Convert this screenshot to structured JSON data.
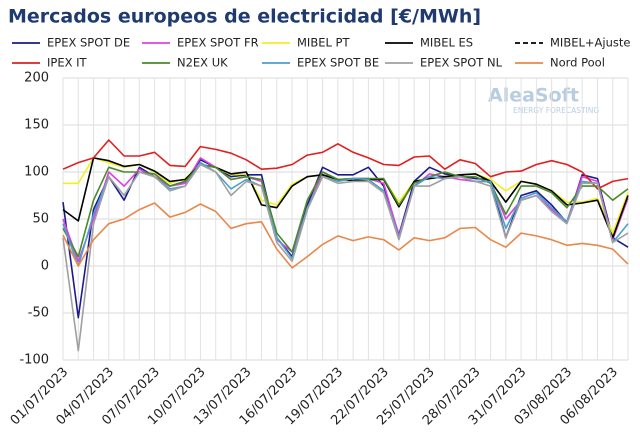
{
  "chart_data": {
    "type": "line",
    "title": "Mercados europeos de electricidad [€/MWh]",
    "watermark": "AleaSoft",
    "watermark_sub": "ENERGY FORECASTING",
    "categories": [
      "01/07/2023",
      null,
      null,
      "04/07/2023",
      null,
      null,
      "07/07/2023",
      null,
      null,
      "10/07/2023",
      null,
      null,
      "13/07/2023",
      null,
      null,
      "16/07/2023",
      null,
      null,
      "19/07/2023",
      null,
      null,
      "22/07/2023",
      null,
      null,
      "25/07/2023",
      null,
      null,
      "28/07/2023",
      null,
      null,
      "31/07/2023",
      null,
      null,
      "03/08/2023",
      null,
      null,
      "06/08/2023",
      null
    ],
    "ylim": [
      -100,
      200
    ],
    "yticks": [
      -100,
      -50,
      0,
      50,
      100,
      150,
      200
    ],
    "grid": true,
    "series": [
      {
        "name": "EPEX SPOT DE",
        "color": "#1a1a8c",
        "values": [
          68,
          -55,
          60,
          95,
          70,
          105,
          95,
          85,
          90,
          113,
          105,
          95,
          97,
          97,
          30,
          10,
          65,
          105,
          97,
          97,
          105,
          85,
          33,
          90,
          105,
          98,
          96,
          93,
          92,
          30,
          75,
          80,
          65,
          46,
          97,
          93,
          30,
          20
        ]
      },
      {
        "name": "EPEX SPOT FR",
        "color": "#e040e0",
        "values": [
          50,
          5,
          50,
          100,
          85,
          103,
          95,
          85,
          88,
          115,
          105,
          92,
          95,
          90,
          28,
          15,
          60,
          100,
          92,
          93,
          93,
          88,
          32,
          85,
          98,
          95,
          92,
          90,
          90,
          50,
          70,
          75,
          60,
          47,
          95,
          90,
          28,
          72
        ]
      },
      {
        "name": "MIBEL PT",
        "color": "#f0f020",
        "values": [
          88,
          88,
          115,
          110,
          105,
          108,
          100,
          88,
          93,
          108,
          105,
          97,
          98,
          70,
          65,
          87,
          95,
          97,
          92,
          91,
          92,
          92,
          68,
          90,
          93,
          95,
          97,
          98,
          92,
          80,
          90,
          87,
          80,
          68,
          68,
          72,
          35,
          78
        ]
      },
      {
        "name": "MIBEL ES",
        "color": "#000000",
        "values": [
          60,
          48,
          115,
          112,
          106,
          108,
          101,
          90,
          92,
          108,
          105,
          98,
          100,
          65,
          62,
          85,
          95,
          97,
          92,
          91,
          92,
          92,
          63,
          90,
          93,
          95,
          97,
          98,
          90,
          68,
          90,
          87,
          80,
          65,
          67,
          70,
          30,
          75
        ]
      },
      {
        "name": "MIBEL+Ajuste",
        "color": "#000000",
        "dashed": true,
        "values": [
          null,
          null,
          null,
          null,
          null,
          null,
          null,
          null,
          null,
          null,
          null,
          null,
          null,
          null,
          null,
          null,
          null,
          null,
          null,
          null,
          null,
          null,
          null,
          null,
          null,
          null,
          null,
          null,
          null,
          null,
          null,
          null,
          null,
          null,
          null,
          null,
          null,
          null
        ]
      },
      {
        "name": "IPEX IT",
        "color": "#e02020",
        "values": [
          103,
          110,
          115,
          134,
          117,
          117,
          121,
          107,
          106,
          127,
          124,
          120,
          113,
          103,
          104,
          108,
          118,
          121,
          130,
          121,
          115,
          108,
          107,
          116,
          117,
          103,
          113,
          109,
          95,
          100,
          101,
          108,
          112,
          108,
          100,
          82,
          90,
          93
        ]
      },
      {
        "name": "N2EX UK",
        "color": "#4a8a2a",
        "values": [
          40,
          10,
          70,
          105,
          100,
          100,
          98,
          85,
          90,
          108,
          105,
          92,
          95,
          92,
          35,
          15,
          70,
          100,
          92,
          93,
          93,
          93,
          65,
          88,
          95,
          100,
          95,
          95,
          88,
          55,
          85,
          85,
          78,
          62,
          85,
          85,
          70,
          82
        ]
      },
      {
        "name": "EPEX SPOT BE",
        "color": "#4aa0d0",
        "values": [
          45,
          0,
          55,
          95,
          75,
          100,
          95,
          82,
          85,
          110,
          100,
          82,
          92,
          85,
          30,
          8,
          62,
          95,
          90,
          93,
          92,
          80,
          30,
          85,
          95,
          93,
          95,
          90,
          90,
          40,
          72,
          78,
          62,
          47,
          90,
          88,
          25,
          45
        ]
      },
      {
        "name": "EPEX SPOT NL",
        "color": "#a0a0a0",
        "values": [
          30,
          -90,
          45,
          95,
          75,
          100,
          95,
          80,
          85,
          108,
          100,
          75,
          90,
          85,
          25,
          5,
          60,
          95,
          88,
          90,
          90,
          78,
          28,
          85,
          85,
          93,
          95,
          90,
          85,
          30,
          70,
          75,
          58,
          45,
          88,
          88,
          25,
          35
        ]
      },
      {
        "name": "Nord Pool",
        "color": "#e8884a",
        "values": [
          33,
          0,
          28,
          45,
          50,
          60,
          67,
          52,
          57,
          66,
          58,
          40,
          45,
          47,
          18,
          -2,
          10,
          23,
          32,
          27,
          31,
          28,
          17,
          30,
          27,
          30,
          40,
          41,
          28,
          20,
          35,
          32,
          28,
          22,
          24,
          22,
          18,
          2
        ]
      }
    ]
  }
}
